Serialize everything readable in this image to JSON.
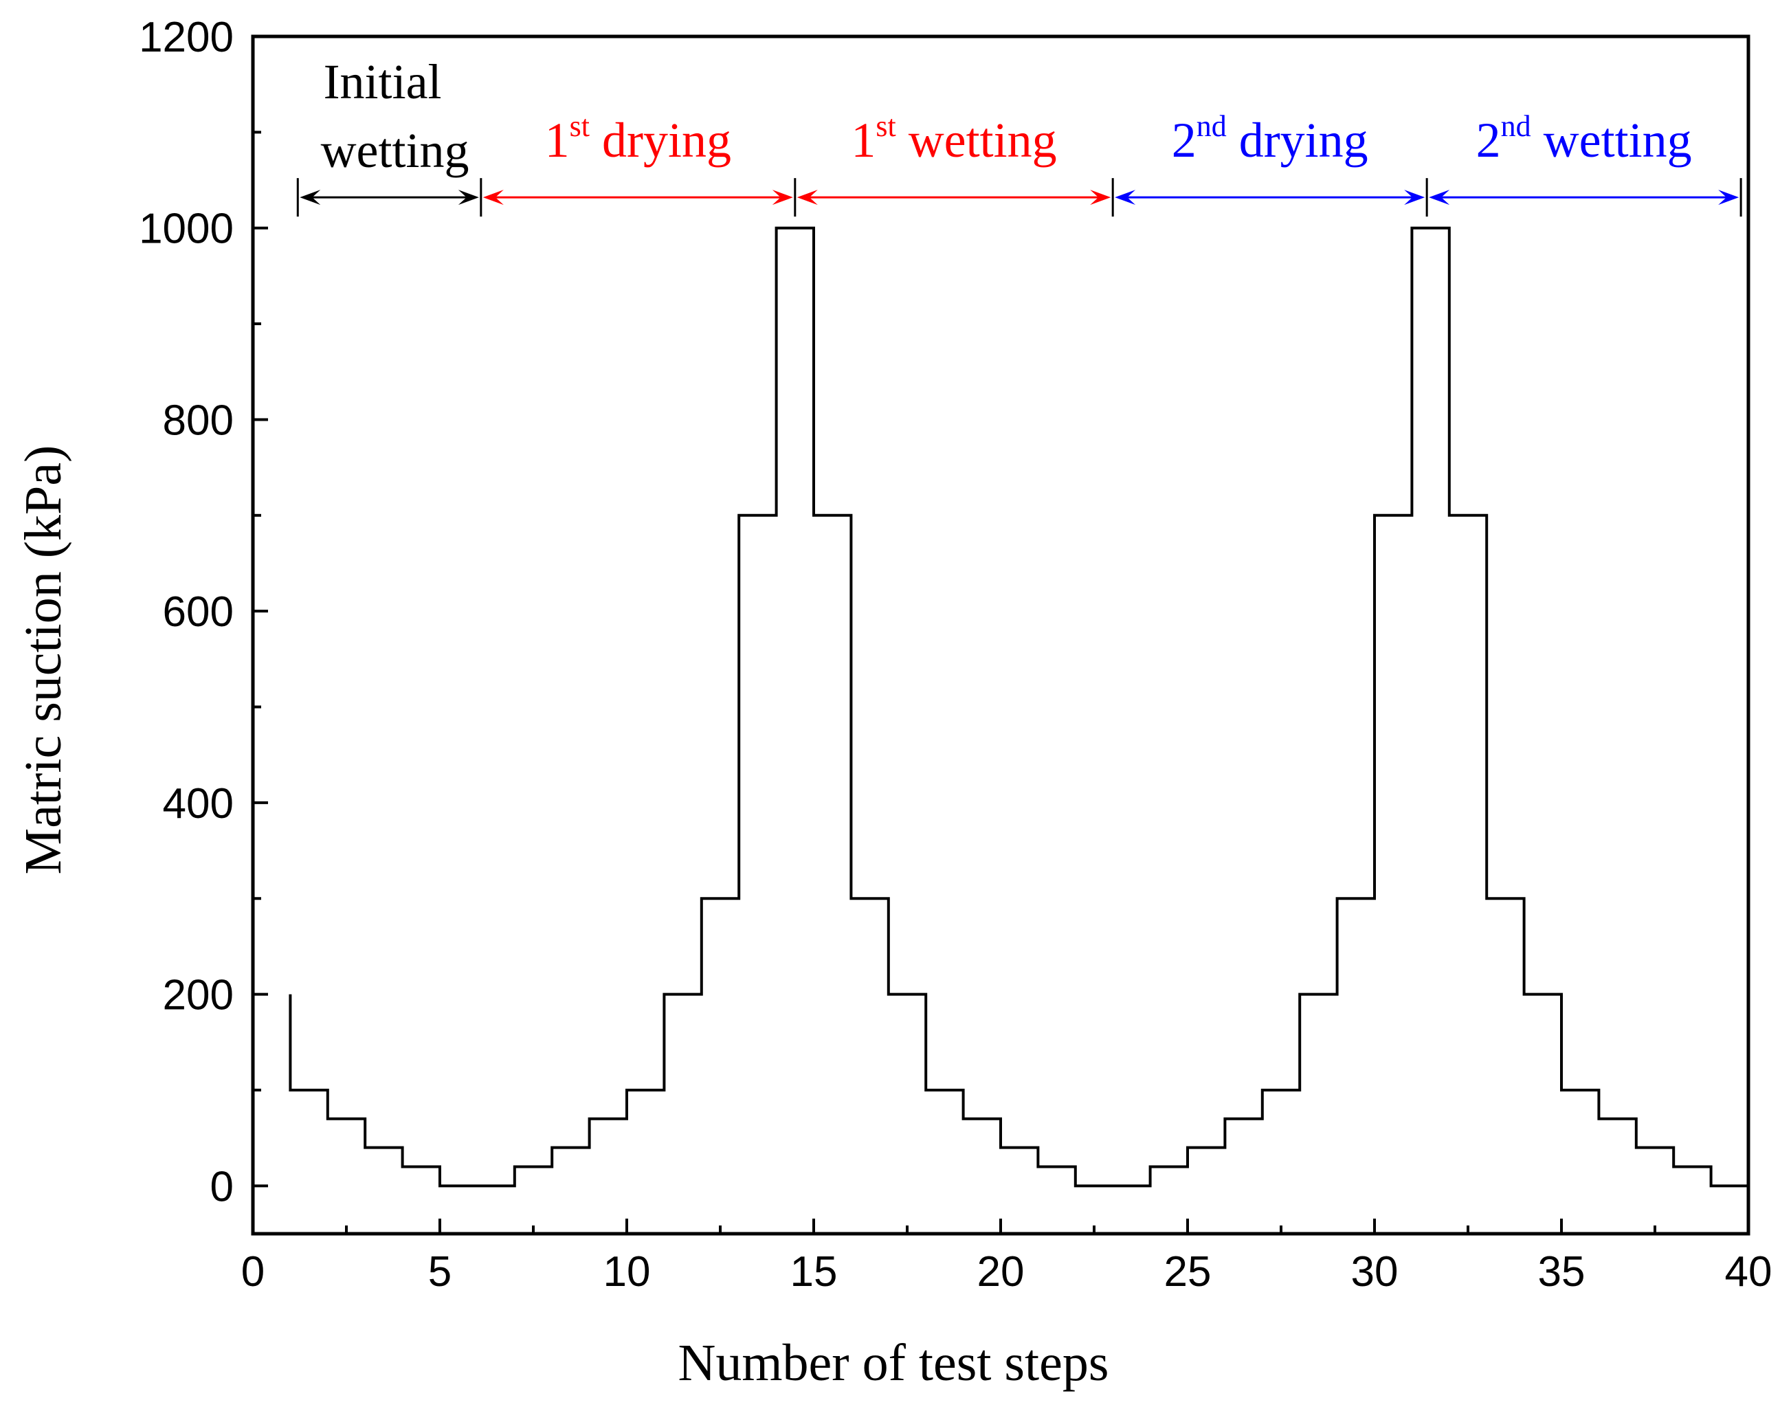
{
  "chart_data": {
    "type": "line",
    "step_style": "step-post",
    "title": "",
    "xlabel": "Number of test steps",
    "ylabel": "Matric suction (kPa)",
    "xlim": [
      0,
      40
    ],
    "ylim": [
      -50,
      1200
    ],
    "x_ticks": [
      0,
      5,
      10,
      15,
      20,
      25,
      30,
      35,
      40
    ],
    "x_tick_labels": [
      "0",
      "5",
      "10",
      "15",
      "20",
      "25",
      "30",
      "35",
      "40"
    ],
    "y_ticks": [
      0,
      200,
      400,
      600,
      800,
      1000,
      1200
    ],
    "y_tick_labels": [
      "0",
      "200",
      "400",
      "600",
      "800",
      "1000",
      "1200"
    ],
    "grid": false,
    "series": [
      {
        "name": "Matric suction",
        "color": "#000000",
        "x": [
          1,
          2,
          3,
          4,
          5,
          6,
          7,
          8,
          9,
          10,
          11,
          12,
          13,
          14,
          15,
          16,
          17,
          18,
          19,
          20,
          21,
          22,
          23,
          24,
          25,
          26,
          27,
          28,
          29,
          30,
          31,
          32,
          33,
          34,
          35,
          36,
          37,
          38,
          39,
          40
        ],
        "values": [
          100,
          70,
          40,
          20,
          0,
          0,
          20,
          40,
          70,
          100,
          200,
          300,
          700,
          1000,
          700,
          300,
          200,
          100,
          70,
          40,
          20,
          0,
          0,
          20,
          40,
          70,
          100,
          200,
          300,
          700,
          1000,
          700,
          300,
          200,
          100,
          70,
          40,
          20,
          0,
          0
        ],
        "start_value": 200
      }
    ],
    "phases": [
      {
        "id": "initial-wetting",
        "line1": "Initial",
        "line2": "wetting",
        "base": "",
        "sup": "",
        "rest": "",
        "x_start": 1.2,
        "x_end": 6.1,
        "color": "#000000"
      },
      {
        "id": "first-drying",
        "line1": "",
        "line2": "",
        "base": "1",
        "sup": "st",
        "rest": " drying",
        "x_start": 6.1,
        "x_end": 14.5,
        "color": "#ff0000"
      },
      {
        "id": "first-wetting",
        "line1": "",
        "line2": "",
        "base": "1",
        "sup": "st",
        "rest": " wetting",
        "x_start": 14.5,
        "x_end": 23.0,
        "color": "#ff0000"
      },
      {
        "id": "second-drying",
        "line1": "",
        "line2": "",
        "base": "2",
        "sup": "nd",
        "rest": " drying",
        "x_start": 23.0,
        "x_end": 31.4,
        "color": "#0000ff"
      },
      {
        "id": "second-wetting",
        "line1": "",
        "line2": "",
        "base": "2",
        "sup": "nd",
        "rest": " wetting",
        "x_start": 31.4,
        "x_end": 39.8,
        "color": "#0000ff"
      }
    ],
    "phase_arrow_value": 1032
  }
}
